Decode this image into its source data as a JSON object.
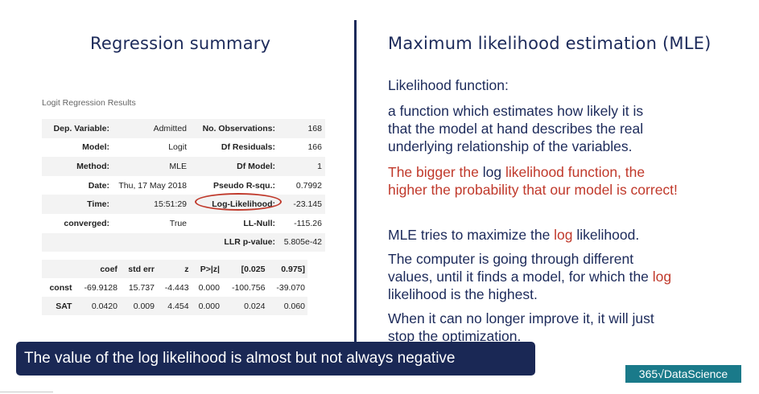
{
  "left_title": "Regression summary",
  "right_title": "Maximum likelihood estimation (MLE)",
  "regression": {
    "caption": "Logit Regression Results",
    "summary_rows": [
      {
        "label1": "Dep. Variable:",
        "value1": "Admitted",
        "label2": "No. Observations:",
        "value2": "168"
      },
      {
        "label1": "Model:",
        "value1": "Logit",
        "label2": "Df Residuals:",
        "value2": "166"
      },
      {
        "label1": "Method:",
        "value1": "MLE",
        "label2": "Df Model:",
        "value2": "1"
      },
      {
        "label1": "Date:",
        "value1": "Thu, 17 May 2018",
        "label2": "Pseudo R-squ.:",
        "value2": "0.7992"
      },
      {
        "label1": "Time:",
        "value1": "15:51:29",
        "label2": "Log-Likelihood:",
        "value2": "-23.145"
      },
      {
        "label1": "converged:",
        "value1": "True",
        "label2": "LL-Null:",
        "value2": "-115.26"
      },
      {
        "label1": "",
        "value1": "",
        "label2": "LLR p-value:",
        "value2": "5.805e-42"
      }
    ],
    "coef_header": [
      "",
      "coef",
      "std err",
      "z",
      "P>|z|",
      "[0.025",
      "0.975]"
    ],
    "coef_rows": [
      [
        "const",
        "-69.9128",
        "15.737",
        "-4.443",
        "0.000",
        "-100.756",
        "-39.070"
      ],
      [
        "SAT",
        "0.0420",
        "0.009",
        "4.454",
        "0.000",
        "0.024",
        "0.060"
      ]
    ]
  },
  "right": {
    "lf_heading": "Likelihood function:",
    "lf_desc": [
      "a function which estimates how likely it is",
      "that the model at hand describes the real",
      "underlying relationship of the variables."
    ],
    "bigger": {
      "p1": "The bigger the ",
      "log1": "log",
      "p2": " likelihood function, the",
      "line2": "higher the probability that our model is correct!"
    },
    "mle_tries": {
      "p1": "MLE tries to maximize the ",
      "log": "log",
      "p2": " likelihood."
    },
    "computer": {
      "line1": "The computer is going through different",
      "line2a": "values, until it finds a model, for which the ",
      "log": "log",
      "line3": "likelihood is the highest."
    },
    "when": {
      "line1": "When it can no longer improve it, it will just",
      "line2": "stop the optimization."
    }
  },
  "subtitle": "The value of the log likelihood is almost but not always negative",
  "logo": "365√DataScience",
  "colors": {
    "navy": "#1c2a5a",
    "red": "#c0392b",
    "bar": "#1a2855",
    "logo": "#1a7a8a"
  }
}
